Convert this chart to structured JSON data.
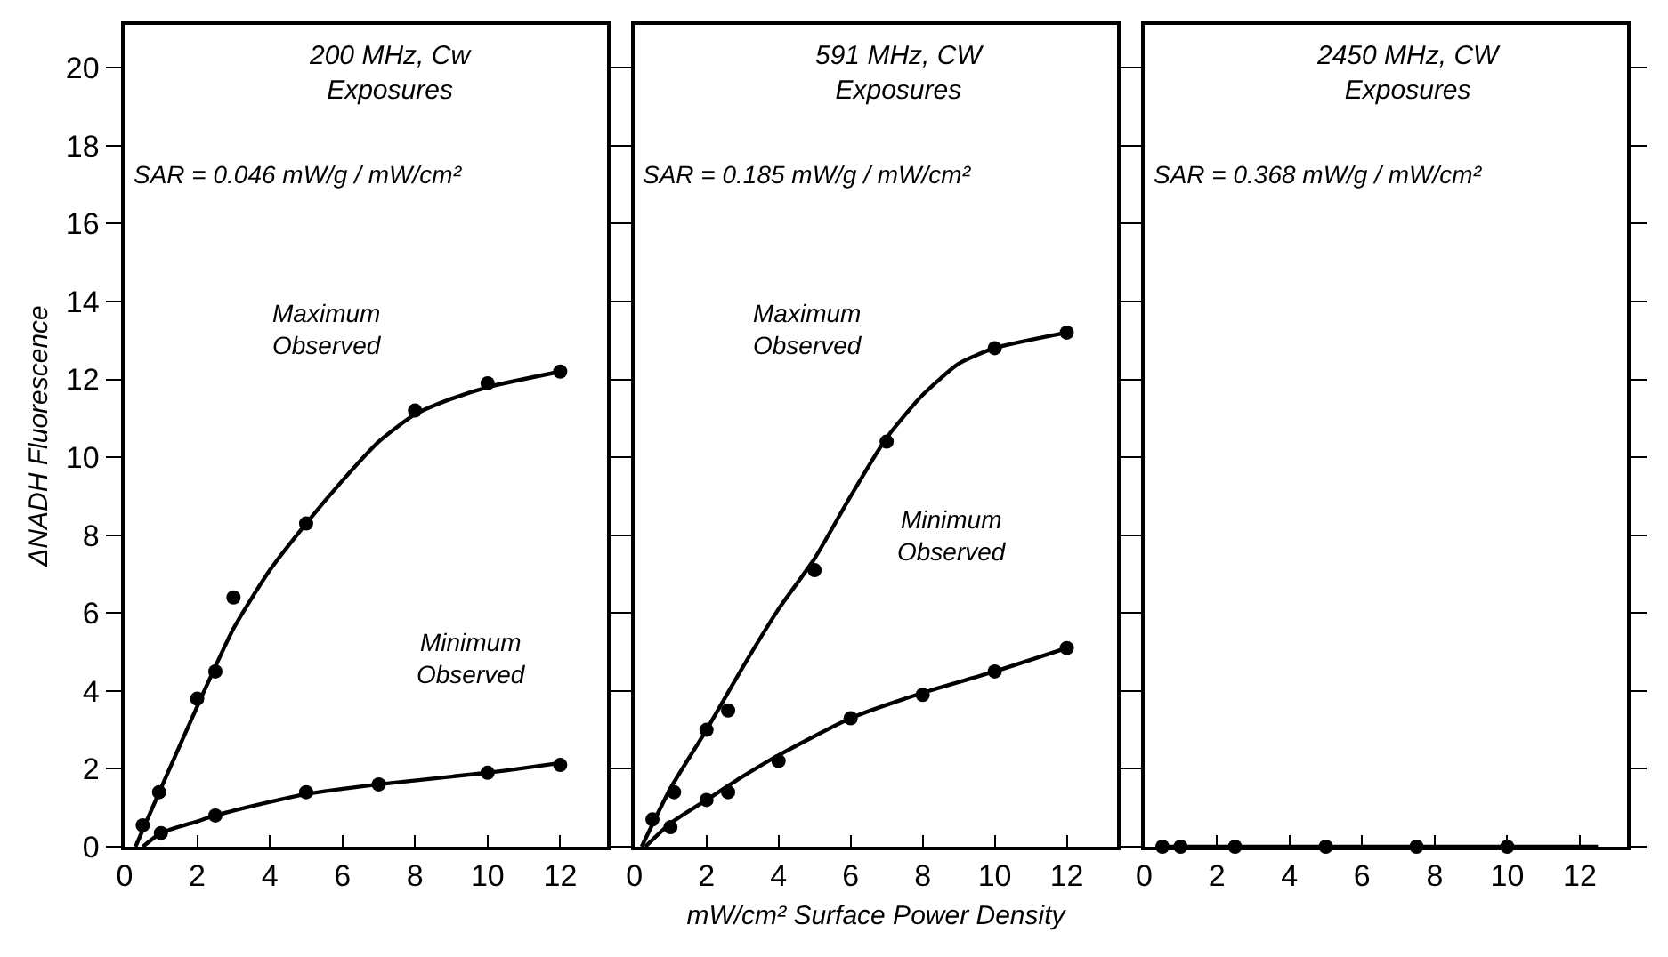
{
  "chart_data": [
    {
      "type": "scatter",
      "title": "200 MHz, Cw\nExposures",
      "ylabel": "ΔNADH Fluorescence",
      "xlim": [
        0,
        13.3
      ],
      "xticks": [
        0,
        2,
        4,
        6,
        8,
        10,
        12
      ],
      "ylim": [
        0,
        21.1
      ],
      "yticks": [
        0,
        2,
        4,
        6,
        8,
        10,
        12,
        14,
        16,
        18,
        20
      ],
      "marker": "circle",
      "line_style": "solid",
      "annotations": [
        "SAR = 0.046 mW/g / mW/cm²",
        "Maximum\nObserved",
        "Minimum\nObserved"
      ],
      "series": [
        {
          "color": "#000000",
          "x": [
            0.5,
            0.95,
            2,
            2.5,
            3,
            5,
            8,
            10,
            12
          ],
          "values": [
            0.55,
            1.4,
            3.8,
            4.5,
            6.4,
            8.3,
            11.2,
            11.9,
            12.2
          ]
        },
        {
          "type": "line",
          "marker": "none",
          "color": "#000000",
          "x": [
            0.3,
            1,
            2,
            3,
            4,
            5,
            6,
            7,
            8,
            9,
            10,
            12
          ],
          "values": [
            0,
            1.5,
            3.6,
            5.6,
            7.1,
            8.3,
            9.4,
            10.4,
            11.1,
            11.5,
            11.8,
            12.2
          ]
        },
        {
          "color": "#000000",
          "x": [
            1,
            2.5,
            5,
            7,
            10,
            12
          ],
          "values": [
            0.35,
            0.8,
            1.4,
            1.6,
            1.9,
            2.1
          ]
        },
        {
          "type": "line",
          "marker": "none",
          "color": "#000000",
          "x": [
            0.5,
            1,
            2,
            2.5,
            4,
            5,
            7,
            10,
            12
          ],
          "values": [
            0,
            0.35,
            0.65,
            0.8,
            1.15,
            1.35,
            1.6,
            1.9,
            2.15
          ]
        }
      ]
    },
    {
      "type": "scatter",
      "title": "591 MHz, CW\nExposures",
      "xlabel": "mW/cm² Surface Power Density",
      "xlim": [
        0,
        13.4
      ],
      "xticks": [
        0,
        2,
        4,
        6,
        8,
        10,
        12
      ],
      "ylim": [
        0,
        21.1
      ],
      "yticks": [
        0,
        2,
        4,
        6,
        8,
        10,
        12,
        14,
        16,
        18,
        20
      ],
      "tick_labels": "x",
      "marker": "circle",
      "line_style": "solid",
      "annotations": [
        "SAR = 0.185 mW/g / mW/cm²",
        "Maximum\nObserved",
        "Minimum\nObserved"
      ],
      "series": [
        {
          "color": "#000000",
          "x": [
            0.5,
            1.1,
            2,
            2.6,
            5,
            7,
            10,
            12
          ],
          "values": [
            0.7,
            1.4,
            3,
            3.5,
            7.1,
            10.4,
            12.8,
            13.2
          ]
        },
        {
          "type": "line",
          "marker": "none",
          "color": "#000000",
          "x": [
            0.2,
            1,
            2,
            3,
            4,
            5,
            6,
            7,
            8,
            9,
            10,
            12
          ],
          "values": [
            0,
            1.5,
            3.0,
            4.6,
            6.1,
            7.4,
            9.0,
            10.5,
            11.6,
            12.4,
            12.8,
            13.2
          ]
        },
        {
          "color": "#000000",
          "x": [
            1,
            2,
            2.6,
            4,
            6,
            8,
            10,
            12
          ],
          "values": [
            0.5,
            1.2,
            1.4,
            2.2,
            3.3,
            3.9,
            4.5,
            5.1
          ]
        },
        {
          "type": "line",
          "marker": "none",
          "color": "#000000",
          "x": [
            0.3,
            1,
            2,
            3,
            4,
            6,
            8,
            10,
            12
          ],
          "values": [
            0,
            0.6,
            1.2,
            1.8,
            2.35,
            3.3,
            3.95,
            4.5,
            5.1
          ]
        }
      ]
    },
    {
      "type": "scatter",
      "title": "2450 MHz, CW\nExposures",
      "xlim": [
        0,
        13.3
      ],
      "xticks": [
        0,
        2,
        4,
        6,
        8,
        10,
        12
      ],
      "ylim": [
        0,
        21.1
      ],
      "yticks": [
        0,
        2,
        4,
        6,
        8,
        10,
        12,
        14,
        16,
        18,
        20
      ],
      "tick_labels": "x",
      "marker": "circle",
      "line_style": "solid",
      "annotations": [
        "SAR = 0.368 mW/g / mW/cm²"
      ],
      "series": [
        {
          "color": "#000000",
          "x": [
            0.5,
            1,
            2.5,
            5,
            7.5,
            10
          ],
          "values": [
            0,
            0,
            0,
            0,
            0,
            0
          ]
        },
        {
          "type": "line",
          "marker": "none",
          "color": "#000000",
          "x": [
            0.5,
            12.5
          ],
          "values": [
            0,
            0
          ]
        }
      ]
    }
  ]
}
